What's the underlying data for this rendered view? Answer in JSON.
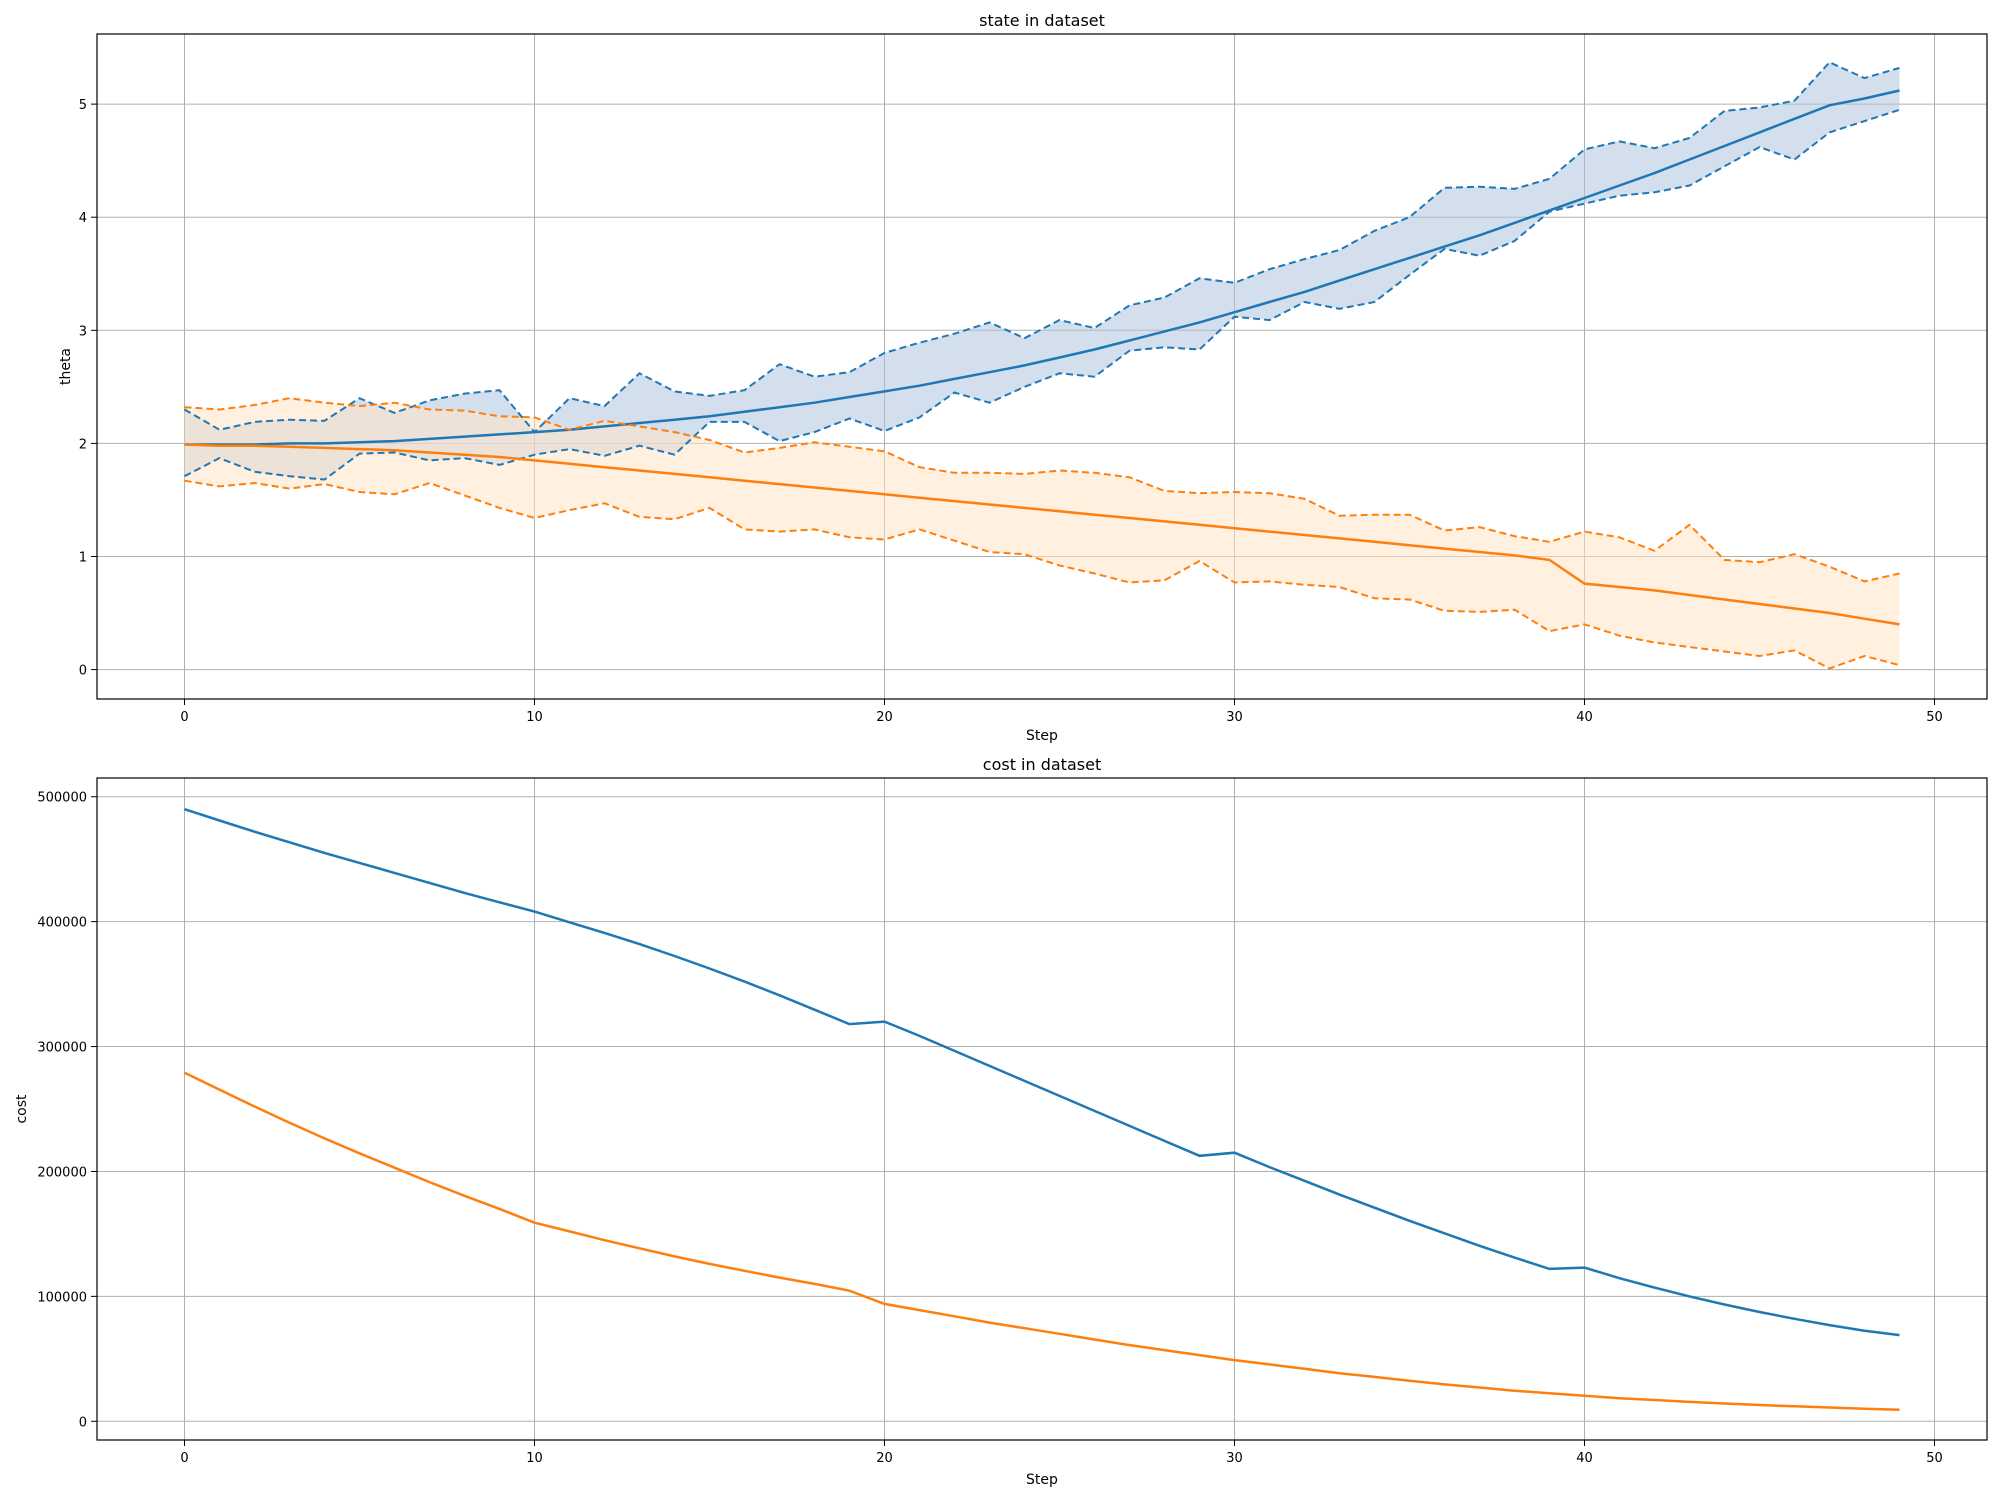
{
  "colors": {
    "blue": "#1f77b4",
    "orange": "#ff7f0e",
    "blue_fill": "#b0c4de",
    "orange_fill": "#ffe4c4"
  },
  "chart_data": [
    {
      "type": "line",
      "title": "state in dataset",
      "xlabel": "Step",
      "ylabel": "theta",
      "xlim": [
        -2.5,
        51.5
      ],
      "ylim": [
        -0.26,
        5.62
      ],
      "xticks": [
        0,
        10,
        20,
        30,
        40,
        50
      ],
      "yticks": [
        0,
        1,
        2,
        3,
        4,
        5
      ],
      "grid": true,
      "x": [
        0,
        1,
        2,
        3,
        4,
        5,
        6,
        7,
        8,
        9,
        10,
        11,
        12,
        13,
        14,
        15,
        16,
        17,
        18,
        19,
        20,
        21,
        22,
        23,
        24,
        25,
        26,
        27,
        28,
        29,
        30,
        31,
        32,
        33,
        34,
        35,
        36,
        37,
        38,
        39,
        40,
        41,
        42,
        43,
        44,
        45,
        46,
        47,
        48,
        49
      ],
      "series": [
        {
          "color": "blue",
          "mean": [
            1.99,
            1.99,
            1.99,
            2.0,
            2.0,
            2.01,
            2.02,
            2.04,
            2.06,
            2.08,
            2.1,
            2.12,
            2.15,
            2.18,
            2.21,
            2.24,
            2.28,
            2.32,
            2.36,
            2.41,
            2.46,
            2.51,
            2.57,
            2.63,
            2.69,
            2.76,
            2.83,
            2.91,
            2.99,
            3.07,
            3.16,
            3.25,
            3.34,
            3.44,
            3.54,
            3.64,
            3.74,
            3.84,
            3.95,
            4.06,
            4.17,
            4.28,
            4.39,
            4.51,
            4.63,
            4.75,
            4.87,
            4.99,
            5.05,
            5.12
          ],
          "upper": [
            2.3,
            2.12,
            2.19,
            2.21,
            2.2,
            2.4,
            2.27,
            2.38,
            2.44,
            2.47,
            2.1,
            2.4,
            2.33,
            2.62,
            2.46,
            2.42,
            2.47,
            2.7,
            2.59,
            2.63,
            2.8,
            2.89,
            2.97,
            3.07,
            2.93,
            3.09,
            3.02,
            3.22,
            3.29,
            3.46,
            3.42,
            3.54,
            3.63,
            3.71,
            3.88,
            4.0,
            4.26,
            4.27,
            4.25,
            4.34,
            4.6,
            4.67,
            4.61,
            4.7,
            4.94,
            4.97,
            5.03,
            5.37,
            5.23,
            5.32
          ],
          "lower": [
            1.71,
            1.87,
            1.75,
            1.71,
            1.68,
            1.91,
            1.92,
            1.85,
            1.87,
            1.81,
            1.9,
            1.95,
            1.89,
            1.98,
            1.9,
            2.19,
            2.19,
            2.02,
            2.1,
            2.22,
            2.11,
            2.23,
            2.45,
            2.36,
            2.5,
            2.62,
            2.59,
            2.82,
            2.85,
            2.83,
            3.12,
            3.09,
            3.25,
            3.19,
            3.25,
            3.49,
            3.72,
            3.66,
            3.79,
            4.05,
            4.12,
            4.19,
            4.22,
            4.28,
            4.45,
            4.62,
            4.51,
            4.75,
            4.85,
            4.95
          ]
        },
        {
          "color": "orange",
          "mean": [
            1.99,
            1.98,
            1.98,
            1.97,
            1.96,
            1.95,
            1.94,
            1.92,
            1.9,
            1.88,
            1.85,
            1.82,
            1.79,
            1.76,
            1.73,
            1.7,
            1.67,
            1.64,
            1.61,
            1.58,
            1.55,
            1.52,
            1.49,
            1.46,
            1.43,
            1.4,
            1.37,
            1.34,
            1.31,
            1.28,
            1.25,
            1.22,
            1.19,
            1.16,
            1.13,
            1.1,
            1.07,
            1.04,
            1.01,
            0.97,
            0.76,
            0.73,
            0.7,
            0.66,
            0.62,
            0.58,
            0.54,
            0.5,
            0.45,
            0.4
          ],
          "upper": [
            2.32,
            2.3,
            2.34,
            2.4,
            2.36,
            2.33,
            2.36,
            2.3,
            2.29,
            2.24,
            2.23,
            2.12,
            2.2,
            2.15,
            2.1,
            2.03,
            1.92,
            1.96,
            2.01,
            1.97,
            1.93,
            1.79,
            1.74,
            1.74,
            1.73,
            1.76,
            1.74,
            1.7,
            1.58,
            1.56,
            1.57,
            1.56,
            1.51,
            1.36,
            1.37,
            1.37,
            1.23,
            1.26,
            1.18,
            1.13,
            1.22,
            1.17,
            1.05,
            1.28,
            0.97,
            0.95,
            1.02,
            0.91,
            0.78,
            0.85
          ],
          "lower": [
            1.67,
            1.62,
            1.65,
            1.6,
            1.64,
            1.57,
            1.55,
            1.65,
            1.54,
            1.43,
            1.34,
            1.41,
            1.47,
            1.35,
            1.33,
            1.43,
            1.24,
            1.22,
            1.24,
            1.17,
            1.15,
            1.24,
            1.14,
            1.04,
            1.02,
            0.92,
            0.85,
            0.77,
            0.79,
            0.96,
            0.77,
            0.78,
            0.75,
            0.73,
            0.63,
            0.62,
            0.52,
            0.51,
            0.53,
            0.34,
            0.4,
            0.3,
            0.24,
            0.2,
            0.16,
            0.12,
            0.17,
            0.01,
            0.12,
            0.04
          ]
        }
      ]
    },
    {
      "type": "line",
      "title": "cost in dataset",
      "xlabel": "Step",
      "ylabel": "cost",
      "xlim": [
        -2.5,
        51.5
      ],
      "ylim": [
        -15000,
        515000
      ],
      "xticks": [
        0,
        10,
        20,
        30,
        40,
        50
      ],
      "yticks": [
        0,
        100000,
        200000,
        300000,
        400000,
        500000
      ],
      "grid": true,
      "x": [
        0,
        1,
        2,
        3,
        4,
        5,
        6,
        7,
        8,
        9,
        10,
        11,
        12,
        13,
        14,
        15,
        16,
        17,
        18,
        19,
        20,
        21,
        22,
        23,
        24,
        25,
        26,
        27,
        28,
        29,
        30,
        31,
        32,
        33,
        34,
        35,
        36,
        37,
        38,
        39,
        40,
        41,
        42,
        43,
        44,
        45,
        46,
        47,
        48,
        49
      ],
      "series": [
        {
          "color": "blue",
          "values": [
            490000,
            481000,
            472000,
            463500,
            455000,
            447000,
            439000,
            431000,
            423000,
            415500,
            408000,
            399500,
            391000,
            382000,
            372500,
            362500,
            352000,
            341000,
            329500,
            318000,
            320000,
            308500,
            296500,
            284500,
            272500,
            260500,
            248500,
            236500,
            224500,
            212500,
            215000,
            203500,
            192500,
            181500,
            171000,
            160500,
            150500,
            140500,
            131000,
            122000,
            123000,
            114500,
            107000,
            100000,
            93500,
            87500,
            82000,
            77000,
            72500,
            69000
          ]
        },
        {
          "color": "orange",
          "values": [
            279000,
            265500,
            252000,
            239000,
            226500,
            214500,
            203000,
            191500,
            180500,
            170000,
            159000,
            152000,
            145000,
            138500,
            132000,
            126000,
            120500,
            115000,
            110000,
            104500,
            94000,
            89000,
            84000,
            79000,
            74500,
            70000,
            65500,
            61000,
            57000,
            53000,
            49000,
            45500,
            42000,
            38500,
            35500,
            32500,
            29500,
            27000,
            24500,
            22500,
            20500,
            18500,
            17000,
            15500,
            14200,
            13000,
            12000,
            11000,
            10000,
            9200
          ]
        }
      ]
    }
  ]
}
